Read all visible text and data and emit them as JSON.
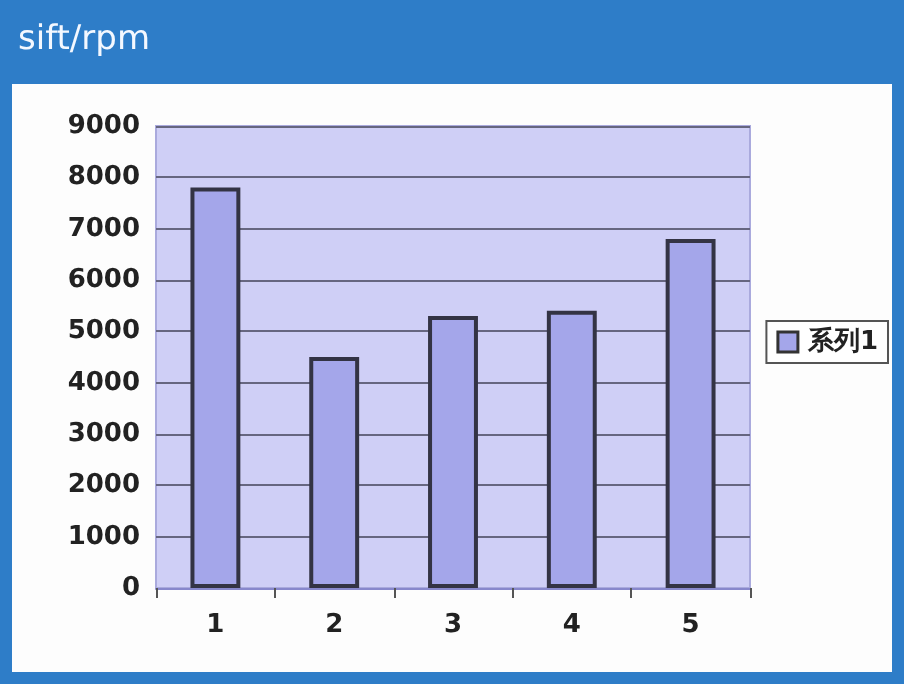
{
  "chart_data": {
    "type": "bar",
    "title": "sift/rpm",
    "categories": [
      "1",
      "2",
      "3",
      "4",
      "5"
    ],
    "series": [
      {
        "name": "系列1",
        "color": "#a4a6ea",
        "values": [
          7800,
          4500,
          5300,
          5400,
          6800
        ]
      }
    ],
    "ylim": [
      0,
      9000
    ],
    "yticks": [
      0,
      1000,
      2000,
      3000,
      4000,
      5000,
      6000,
      7000,
      8000,
      9000
    ],
    "grid": "y",
    "legend": "right"
  }
}
